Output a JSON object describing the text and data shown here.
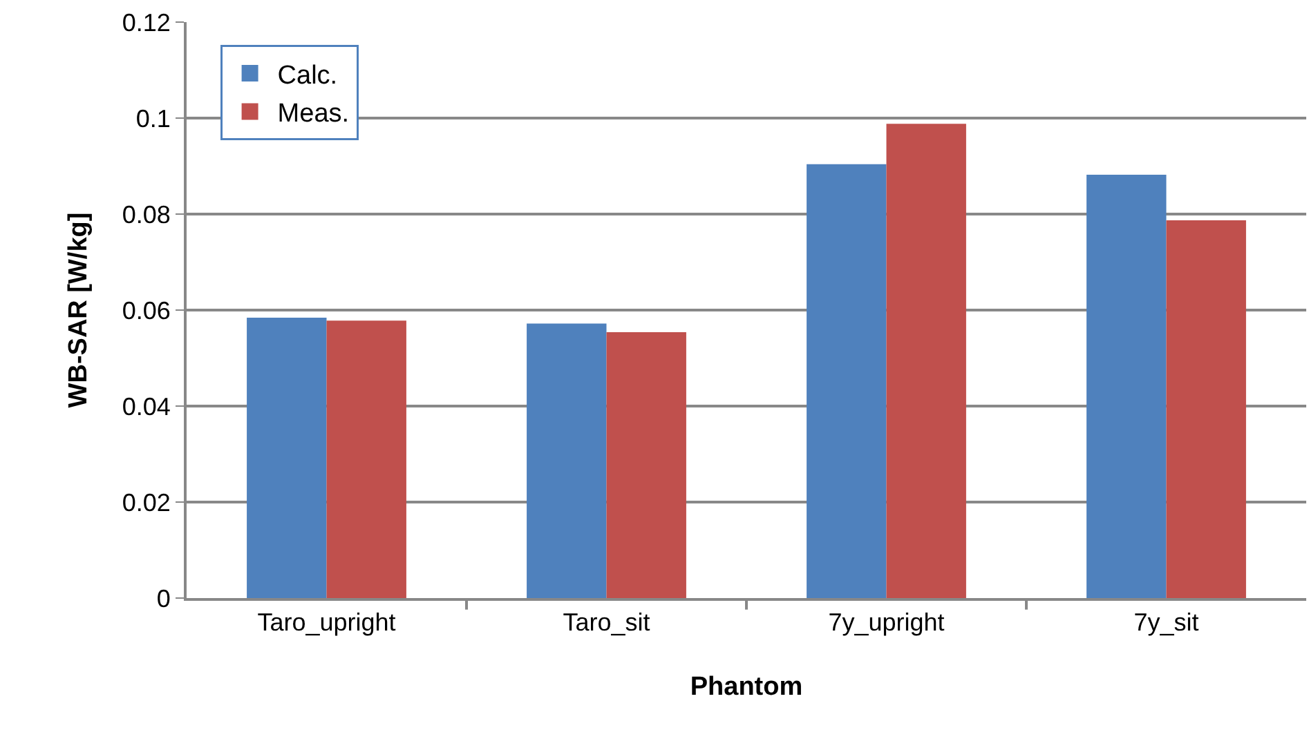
{
  "chart_data": {
    "type": "bar",
    "xlabel": "Phantom",
    "ylabel": "WB-SAR [W/kg]",
    "categories": [
      "Taro_upright",
      "Taro_sit",
      "7y_upright",
      "7y_sit"
    ],
    "series": [
      {
        "name": "Calc.",
        "color": "#4f81bd",
        "values": [
          0.0584,
          0.0572,
          0.0904,
          0.0882
        ]
      },
      {
        "name": "Meas.",
        "color": "#c0504d",
        "values": [
          0.0578,
          0.0554,
          0.0988,
          0.0787
        ]
      }
    ],
    "ylim": [
      0,
      0.12
    ],
    "yticks": [
      {
        "value": 0,
        "label": "0"
      },
      0.02,
      0.04,
      0.06,
      0.08,
      0.1,
      0.12
    ],
    "grid": "y",
    "legend": "top left"
  }
}
